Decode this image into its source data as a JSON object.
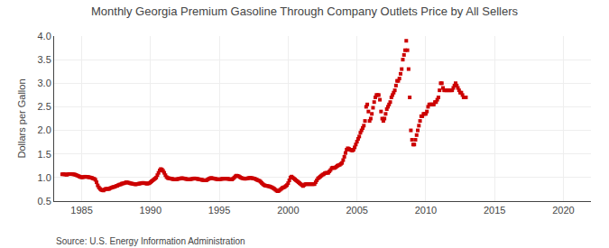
{
  "chart_data": {
    "type": "scatter",
    "title": "Monthly Georgia Premium Gasoline Through Company Outlets Price by All Sellers",
    "ylabel": "Dollars per Gallon",
    "annotations": [
      "Source: U.S. Energy Information Administration"
    ],
    "color": "#CC0000",
    "marker": "square",
    "grid": true,
    "xlim": [
      1983,
      2022
    ],
    "ylim": [
      0.5,
      4.0
    ],
    "xticks": [
      1985,
      1990,
      1995,
      2000,
      2005,
      2010,
      2015,
      2020
    ],
    "yticks": [
      0.5,
      {
        "value": 1.0,
        "label": "1.0"
      },
      1.5,
      {
        "value": 2.0,
        "label": "2.0"
      },
      2.5,
      {
        "value": 3.0,
        "label": "3.0"
      },
      3.5,
      {
        "value": 4.0,
        "label": "4.0"
      }
    ],
    "x": [
      1983.583,
      1983.667,
      1983.75,
      1983.833,
      1983.917,
      1984.0,
      1984.083,
      1984.167,
      1984.25,
      1984.333,
      1984.417,
      1984.5,
      1984.583,
      1984.667,
      1984.75,
      1984.833,
      1984.917,
      1985.0,
      1985.083,
      1985.167,
      1985.25,
      1985.333,
      1985.417,
      1985.5,
      1985.583,
      1985.667,
      1985.75,
      1985.833,
      1985.917,
      1986.0,
      1986.083,
      1986.167,
      1986.25,
      1986.333,
      1986.417,
      1986.5,
      1986.583,
      1986.667,
      1986.75,
      1986.833,
      1986.917,
      1987.0,
      1987.083,
      1987.167,
      1987.25,
      1987.333,
      1987.417,
      1987.5,
      1987.583,
      1987.667,
      1987.75,
      1987.833,
      1987.917,
      1988.0,
      1988.083,
      1988.167,
      1988.25,
      1988.333,
      1988.417,
      1988.5,
      1988.583,
      1988.667,
      1988.75,
      1988.833,
      1988.917,
      1989.0,
      1989.083,
      1989.167,
      1989.25,
      1989.333,
      1989.417,
      1989.5,
      1989.583,
      1989.667,
      1989.75,
      1989.833,
      1989.917,
      1990.0,
      1990.083,
      1990.167,
      1990.25,
      1990.333,
      1990.417,
      1990.5,
      1990.583,
      1990.667,
      1990.75,
      1990.833,
      1990.917,
      1991.0,
      1991.083,
      1991.167,
      1991.25,
      1991.333,
      1991.417,
      1991.5,
      1991.583,
      1991.667,
      1991.75,
      1991.833,
      1991.917,
      1992.0,
      1992.083,
      1992.167,
      1992.25,
      1992.333,
      1992.417,
      1992.5,
      1992.583,
      1992.667,
      1992.75,
      1992.833,
      1992.917,
      1993.0,
      1993.083,
      1993.167,
      1993.25,
      1993.333,
      1993.417,
      1993.5,
      1993.583,
      1993.667,
      1993.75,
      1993.833,
      1993.917,
      1994.0,
      1994.083,
      1994.167,
      1994.25,
      1994.333,
      1994.417,
      1994.5,
      1994.583,
      1994.667,
      1994.75,
      1994.833,
      1994.917,
      1995.0,
      1995.083,
      1995.167,
      1995.25,
      1995.333,
      1995.417,
      1995.5,
      1995.583,
      1995.667,
      1995.75,
      1995.833,
      1995.917,
      1996.0,
      1996.083,
      1996.167,
      1996.25,
      1996.333,
      1996.417,
      1996.5,
      1996.583,
      1996.667,
      1996.75,
      1996.833,
      1996.917,
      1997.0,
      1997.083,
      1997.167,
      1997.25,
      1997.333,
      1997.417,
      1997.5,
      1997.583,
      1997.667,
      1997.75,
      1997.833,
      1997.917,
      1998.0,
      1998.083,
      1998.167,
      1998.25,
      1998.333,
      1998.417,
      1998.5,
      1998.583,
      1998.667,
      1998.75,
      1998.833,
      1998.917,
      1999.0,
      1999.083,
      1999.167,
      1999.25,
      1999.333,
      1999.417,
      1999.5,
      1999.583,
      1999.667,
      1999.75,
      1999.833,
      1999.917,
      2000.0,
      2000.083,
      2000.167,
      2000.25,
      2000.333,
      2000.417,
      2000.5,
      2000.583,
      2000.667,
      2000.75,
      2000.833,
      2000.917,
      2001.0,
      2001.083,
      2001.167,
      2001.25,
      2001.333,
      2001.417,
      2001.5,
      2001.583,
      2001.667,
      2001.75,
      2001.833,
      2001.917,
      2002.0,
      2002.083,
      2002.167,
      2002.25,
      2002.333,
      2002.417,
      2002.5,
      2002.583,
      2002.667,
      2002.75,
      2002.833,
      2002.917,
      2003.0,
      2003.083,
      2003.167,
      2003.25,
      2003.333,
      2003.417,
      2003.5,
      2003.583,
      2003.667,
      2003.75,
      2003.833,
      2003.917,
      2004.0,
      2004.083,
      2004.167,
      2004.25,
      2004.333,
      2004.417,
      2004.5,
      2004.583,
      2004.667,
      2004.75,
      2004.833,
      2004.917,
      2005.0,
      2005.083,
      2005.167,
      2005.25,
      2005.333,
      2005.417,
      2005.5,
      2005.583,
      2005.667,
      2005.75,
      2005.833,
      2005.917,
      2006.0,
      2006.083,
      2006.167,
      2006.25,
      2006.333,
      2006.417,
      2006.5,
      2006.583,
      2006.667,
      2006.75,
      2006.833,
      2006.917,
      2007.0,
      2007.083,
      2007.167,
      2007.25,
      2007.333,
      2007.417,
      2007.5,
      2007.583,
      2007.667,
      2007.75,
      2007.833,
      2007.917,
      2008.0,
      2008.083,
      2008.167,
      2008.25,
      2008.333,
      2008.417,
      2008.5,
      2008.583,
      2008.667,
      2008.75,
      2008.833,
      2008.917,
      2009.0,
      2009.083,
      2009.167,
      2009.25,
      2009.333,
      2009.417,
      2009.5,
      2009.583,
      2009.667,
      2009.75,
      2009.833,
      2009.917,
      2010.0,
      2010.083,
      2010.167,
      2010.25,
      2010.333,
      2010.417,
      2010.5,
      2010.583,
      2010.667,
      2010.75,
      2010.833,
      2010.917,
      2011.0,
      2011.083,
      2011.167,
      2011.25,
      2011.333,
      2011.417,
      2011.5,
      2011.583,
      2011.667,
      2011.75,
      2011.833,
      2011.917,
      2012.0,
      2012.083,
      2012.167,
      2012.25,
      2012.333,
      2012.417,
      2012.5,
      2012.583,
      2012.667,
      2012.75,
      2012.833,
      2012.917
    ],
    "values": [
      1.069,
      1.072,
      1.068,
      1.063,
      1.06,
      1.069,
      1.073,
      1.075,
      1.073,
      1.071,
      1.068,
      1.064,
      1.054,
      1.044,
      1.033,
      1.022,
      1.011,
      1.005,
      1.008,
      1.011,
      1.018,
      1.015,
      1.012,
      1.009,
      1.004,
      0.998,
      0.991,
      0.98,
      0.972,
      0.951,
      0.9,
      0.833,
      0.79,
      0.76,
      0.741,
      0.73,
      0.725,
      0.745,
      0.76,
      0.76,
      0.755,
      0.76,
      0.775,
      0.785,
      0.795,
      0.8,
      0.805,
      0.82,
      0.825,
      0.84,
      0.85,
      0.855,
      0.87,
      0.875,
      0.88,
      0.89,
      0.9,
      0.895,
      0.89,
      0.88,
      0.875,
      0.87,
      0.865,
      0.86,
      0.855,
      0.86,
      0.865,
      0.87,
      0.875,
      0.88,
      0.885,
      0.885,
      0.88,
      0.875,
      0.87,
      0.875,
      0.88,
      0.9,
      0.92,
      0.94,
      0.96,
      0.98,
      1.0,
      1.05,
      1.1,
      1.15,
      1.18,
      1.17,
      1.14,
      1.1,
      1.05,
      1.01,
      0.99,
      0.985,
      0.98,
      0.975,
      0.97,
      0.965,
      0.96,
      0.96,
      0.965,
      0.97,
      0.975,
      0.98,
      0.985,
      0.985,
      0.98,
      0.975,
      0.97,
      0.965,
      0.96,
      0.96,
      0.965,
      0.97,
      0.975,
      0.98,
      0.98,
      0.975,
      0.97,
      0.965,
      0.96,
      0.955,
      0.95,
      0.945,
      0.94,
      0.94,
      0.945,
      0.96,
      0.975,
      0.985,
      0.99,
      0.985,
      0.98,
      0.975,
      0.97,
      0.965,
      0.96,
      0.96,
      0.965,
      0.97,
      0.975,
      0.975,
      0.975,
      0.975,
      0.975,
      0.97,
      0.965,
      0.96,
      0.96,
      0.975,
      1.0,
      1.025,
      1.04,
      1.035,
      1.025,
      1.01,
      0.995,
      0.985,
      0.98,
      0.975,
      0.975,
      0.98,
      0.985,
      0.99,
      0.995,
      0.99,
      0.985,
      0.98,
      0.975,
      0.96,
      0.95,
      0.94,
      0.93,
      0.91,
      0.885,
      0.86,
      0.84,
      0.83,
      0.825,
      0.82,
      0.815,
      0.81,
      0.8,
      0.79,
      0.775,
      0.76,
      0.74,
      0.72,
      0.71,
      0.72,
      0.74,
      0.76,
      0.78,
      0.79,
      0.8,
      0.82,
      0.84,
      0.88,
      0.94,
      1.0,
      1.02,
      1.0,
      0.98,
      0.96,
      0.94,
      0.92,
      0.9,
      0.88,
      0.86,
      0.84,
      0.82,
      0.84,
      0.86,
      0.86,
      0.86,
      0.86,
      0.86,
      0.86,
      0.86,
      0.86,
      0.86,
      0.9,
      0.94,
      0.98,
      1.0,
      1.02,
      1.04,
      1.06,
      1.07,
      1.09,
      1.1,
      1.1,
      1.1,
      1.13,
      1.16,
      1.2,
      1.21,
      1.2,
      1.21,
      1.23,
      1.25,
      1.26,
      1.27,
      1.29,
      1.31,
      1.37,
      1.44,
      1.52,
      1.59,
      1.62,
      1.61,
      1.59,
      1.58,
      1.57,
      1.59,
      1.64,
      1.7,
      1.76,
      1.82,
      1.87,
      1.95,
      2.0,
      2.05,
      2.1,
      2.2,
      2.5,
      2.55,
      2.4,
      2.2,
      2.25,
      2.35,
      2.48,
      2.6,
      2.7,
      2.75,
      2.75,
      2.75,
      2.65,
      2.4,
      2.25,
      2.2,
      2.25,
      2.35,
      2.45,
      2.5,
      2.55,
      2.6,
      2.7,
      2.75,
      2.8,
      2.85,
      2.95,
      3.05,
      3.05,
      3.1,
      3.2,
      3.3,
      3.5,
      3.6,
      3.7,
      3.9,
      3.7,
      3.3,
      2.7,
      2.0,
      1.8,
      1.7,
      1.7,
      1.8,
      1.9,
      2.0,
      2.1,
      2.2,
      2.3,
      2.3,
      2.35,
      2.35,
      2.35,
      2.4,
      2.5,
      2.55,
      2.55,
      2.55,
      2.55,
      2.55,
      2.6,
      2.6,
      2.65,
      2.7,
      2.85,
      3.0,
      3.0,
      2.9,
      2.85,
      2.85,
      2.85,
      2.85,
      2.85,
      2.85,
      2.85,
      2.85,
      2.9,
      2.95,
      3.0,
      2.95,
      2.9,
      2.85,
      2.8,
      2.8,
      2.75,
      2.7,
      2.7,
      2.7
    ]
  }
}
